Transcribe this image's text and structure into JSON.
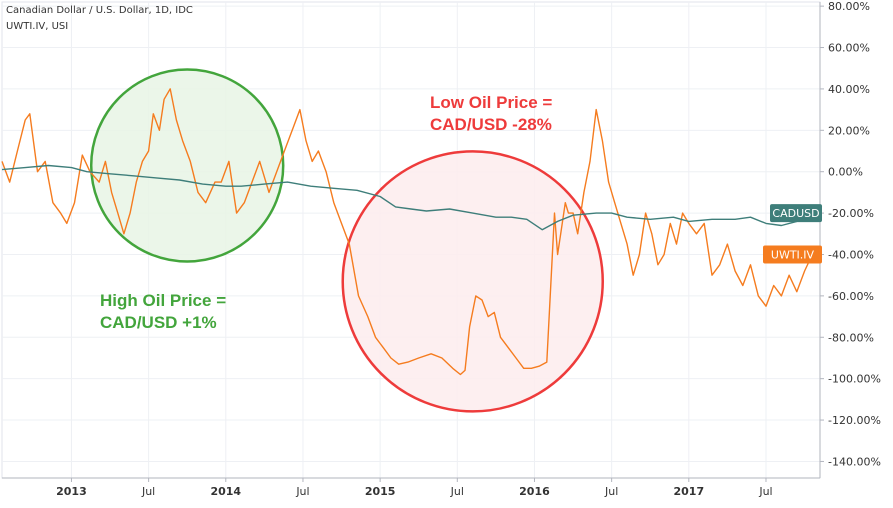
{
  "header": {
    "title": "Canadian Dollar / U.S. Dollar, 1D, IDC",
    "subtitle": "UWTI.IV, USI"
  },
  "chart_data": {
    "type": "line",
    "title": "Canadian Dollar / U.S. Dollar, 1D, IDC",
    "subtitle": "UWTI.IV, USI",
    "x_ticks": [
      "2013",
      "Jul",
      "2014",
      "Jul",
      "2015",
      "Jul",
      "2016",
      "Jul",
      "2017",
      "Jul"
    ],
    "x_tick_positions": [
      2013.0,
      2013.5,
      2014.0,
      2014.5,
      2015.0,
      2015.5,
      2016.0,
      2016.5,
      2017.0,
      2017.5
    ],
    "xlim": [
      2012.55,
      2017.85
    ],
    "ylim": [
      -148,
      82
    ],
    "y_ticks": [
      "80.00%",
      "60.00%",
      "40.00%",
      "20.00%",
      "0.00%",
      "-20.00%",
      "-40.00%",
      "-60.00%",
      "-80.00%",
      "-100.00%",
      "-120.00%",
      "-140.00%"
    ],
    "y_tick_values": [
      80,
      60,
      40,
      20,
      0,
      -20,
      -40,
      -60,
      -80,
      -100,
      -120,
      -140
    ],
    "grid": true,
    "series": [
      {
        "name": "CADUSD",
        "color": "#3e7e7a",
        "last_value": -20,
        "x": [
          2012.55,
          2012.7,
          2012.85,
          2013.0,
          2013.1,
          2013.25,
          2013.4,
          2013.55,
          2013.7,
          2013.85,
          2014.0,
          2014.1,
          2014.25,
          2014.4,
          2014.55,
          2014.7,
          2014.85,
          2015.0,
          2015.1,
          2015.2,
          2015.3,
          2015.45,
          2015.6,
          2015.75,
          2015.85,
          2015.95,
          2016.05,
          2016.15,
          2016.25,
          2016.4,
          2016.5,
          2016.6,
          2016.75,
          2016.9,
          2017.0,
          2017.15,
          2017.3,
          2017.4,
          2017.5,
          2017.6,
          2017.7,
          2017.8
        ],
        "values": [
          1,
          2,
          3,
          2,
          0,
          -1,
          -2,
          -3,
          -4,
          -6,
          -7,
          -7,
          -6,
          -5,
          -7,
          -8,
          -9,
          -12,
          -17,
          -18,
          -19,
          -18,
          -20,
          -22,
          -22,
          -23,
          -28,
          -24,
          -21,
          -20,
          -20,
          -22,
          -23,
          -22,
          -24,
          -23,
          -23,
          -22,
          -25,
          -26,
          -24,
          -20
        ]
      },
      {
        "name": "UWTI.IV",
        "color": "#f57c1f",
        "last_value": -40,
        "x": [
          2012.55,
          2012.6,
          2012.65,
          2012.7,
          2012.73,
          2012.78,
          2012.83,
          2012.88,
          2012.93,
          2012.97,
          2013.02,
          2013.07,
          2013.12,
          2013.18,
          2013.22,
          2013.26,
          2013.3,
          2013.34,
          2013.38,
          2013.42,
          2013.46,
          2013.5,
          2013.53,
          2013.57,
          2013.6,
          2013.64,
          2013.68,
          2013.72,
          2013.77,
          2013.82,
          2013.87,
          2013.93,
          2013.97,
          2014.02,
          2014.07,
          2014.12,
          2014.17,
          2014.22,
          2014.28,
          2014.33,
          2014.38,
          2014.43,
          2014.48,
          2014.52,
          2014.56,
          2014.6,
          2014.65,
          2014.7,
          2014.75,
          2014.8,
          2014.86,
          2014.92,
          2014.97,
          2015.02,
          2015.07,
          2015.12,
          2015.18,
          2015.25,
          2015.33,
          2015.4,
          2015.47,
          2015.52,
          2015.55,
          2015.58,
          2015.62,
          2015.66,
          2015.7,
          2015.74,
          2015.78,
          2015.83,
          2015.88,
          2015.93,
          2015.98,
          2016.03,
          2016.08,
          2016.13,
          2016.15,
          2016.17,
          2016.2,
          2016.22,
          2016.25,
          2016.28,
          2016.32,
          2016.36,
          2016.4,
          2016.44,
          2016.48,
          2016.52,
          2016.56,
          2016.6,
          2016.64,
          2016.68,
          2016.72,
          2016.76,
          2016.8,
          2016.84,
          2016.88,
          2016.92,
          2016.96,
          2017.0,
          2017.05,
          2017.1,
          2017.15,
          2017.2,
          2017.25,
          2017.3,
          2017.35,
          2017.4,
          2017.45,
          2017.5,
          2017.55,
          2017.6,
          2017.65,
          2017.7,
          2017.75,
          2017.8
        ],
        "values": [
          5,
          -5,
          10,
          25,
          28,
          0,
          5,
          -15,
          -20,
          -25,
          -15,
          8,
          0,
          -5,
          5,
          -10,
          -20,
          -30,
          -20,
          -5,
          5,
          10,
          28,
          20,
          35,
          40,
          25,
          15,
          5,
          -10,
          -15,
          -5,
          -5,
          5,
          -20,
          -15,
          -5,
          5,
          -10,
          0,
          10,
          20,
          30,
          15,
          5,
          10,
          0,
          -15,
          -25,
          -35,
          -60,
          -70,
          -80,
          -85,
          -90,
          -93,
          -92,
          -90,
          -88,
          -90,
          -95,
          -98,
          -96,
          -75,
          -60,
          -62,
          -70,
          -68,
          -80,
          -85,
          -90,
          -95,
          -95,
          -94,
          -92,
          -20,
          -40,
          -30,
          -15,
          -20,
          -20,
          -30,
          -10,
          5,
          30,
          15,
          -5,
          -15,
          -25,
          -35,
          -50,
          -40,
          -20,
          -30,
          -45,
          -40,
          -25,
          -35,
          -20,
          -25,
          -30,
          -25,
          -50,
          -45,
          -35,
          -48,
          -55,
          -45,
          -60,
          -65,
          -55,
          -60,
          -50,
          -58,
          -48,
          -40
        ]
      }
    ],
    "annotations": [
      {
        "id": "high-oil",
        "line1": "High Oil Price =",
        "line2": "CAD/USD +1%",
        "color": "#43a53c",
        "circle_x": 2013.75,
        "circle_y": 3,
        "fill": "#e8f5e5"
      },
      {
        "id": "low-oil",
        "line1": "Low Oil Price =",
        "line2": "CAD/USD -28%",
        "color": "#ee3b3b",
        "circle_x": 2015.6,
        "circle_y": -53,
        "fill": "#fdeced"
      }
    ]
  }
}
